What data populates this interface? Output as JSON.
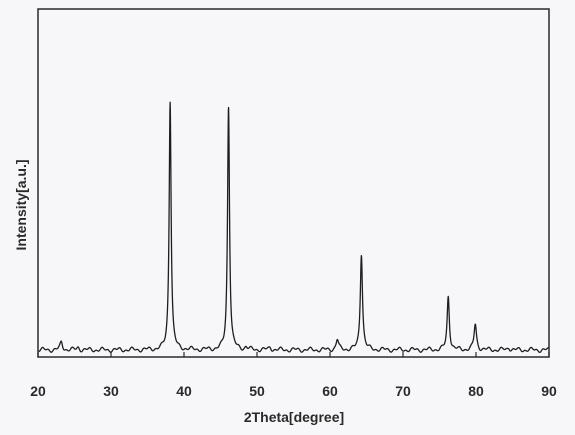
{
  "chart_data": {
    "type": "line",
    "title": "",
    "xlabel": "2Theta[degree]",
    "ylabel": "Intensity[a.u.]",
    "xlim": [
      20,
      90
    ],
    "xticks": [
      20,
      30,
      40,
      50,
      60,
      70,
      80,
      90
    ],
    "x_tick_labels": [
      "20",
      "30",
      "40",
      "50",
      "60",
      "70",
      "80",
      "90"
    ],
    "y_tick_labels": [],
    "ylim": [
      0,
      100
    ],
    "grid": false,
    "legend": "none",
    "line_color": "#1e1e1e",
    "baseline": 2,
    "series": [
      {
        "peaks": [
          {
            "x": 23.2,
            "y": 5
          },
          {
            "x": 25.5,
            "y": 3
          },
          {
            "x": 38.1,
            "y": 100
          },
          {
            "x": 46.1,
            "y": 98
          },
          {
            "x": 48.5,
            "y": 3
          },
          {
            "x": 51.8,
            "y": 3
          },
          {
            "x": 61.0,
            "y": 6
          },
          {
            "x": 64.3,
            "y": 40
          },
          {
            "x": 76.2,
            "y": 23
          },
          {
            "x": 79.9,
            "y": 12
          },
          {
            "x": 84.5,
            "y": 3
          }
        ]
      }
    ]
  }
}
